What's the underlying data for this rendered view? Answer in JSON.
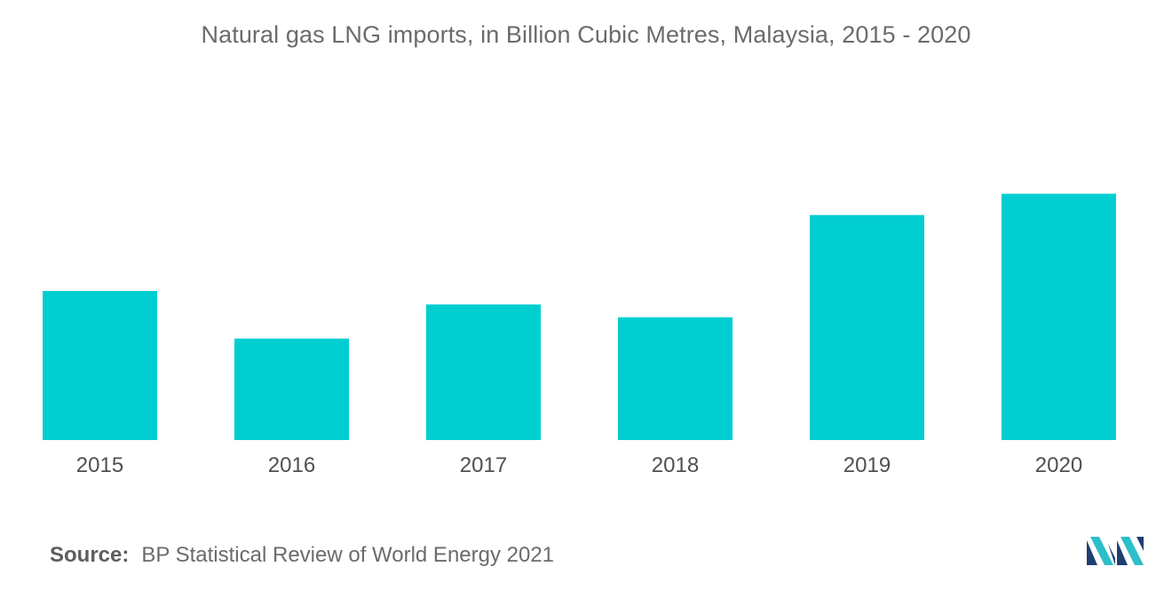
{
  "chart_data": {
    "type": "bar",
    "title": "Natural gas LNG imports, in Billion Cubic Metres, Malaysia, 2015 - 2020",
    "categories": [
      "2015",
      "2016",
      "2017",
      "2018",
      "2019",
      "2020"
    ],
    "values": [
      2.1,
      1.43,
      1.91,
      1.73,
      3.17,
      3.47
    ],
    "ylim": [
      0,
      4.5
    ],
    "grid": false,
    "bar_color": "#00ced1"
  },
  "source": {
    "label": "Source:",
    "text": "BP Statistical Review of World Energy 2021"
  },
  "logo": {
    "icon": "mordor-intelligence-logo-icon",
    "colors": [
      "#1f3f73",
      "#2bbfc9"
    ]
  }
}
